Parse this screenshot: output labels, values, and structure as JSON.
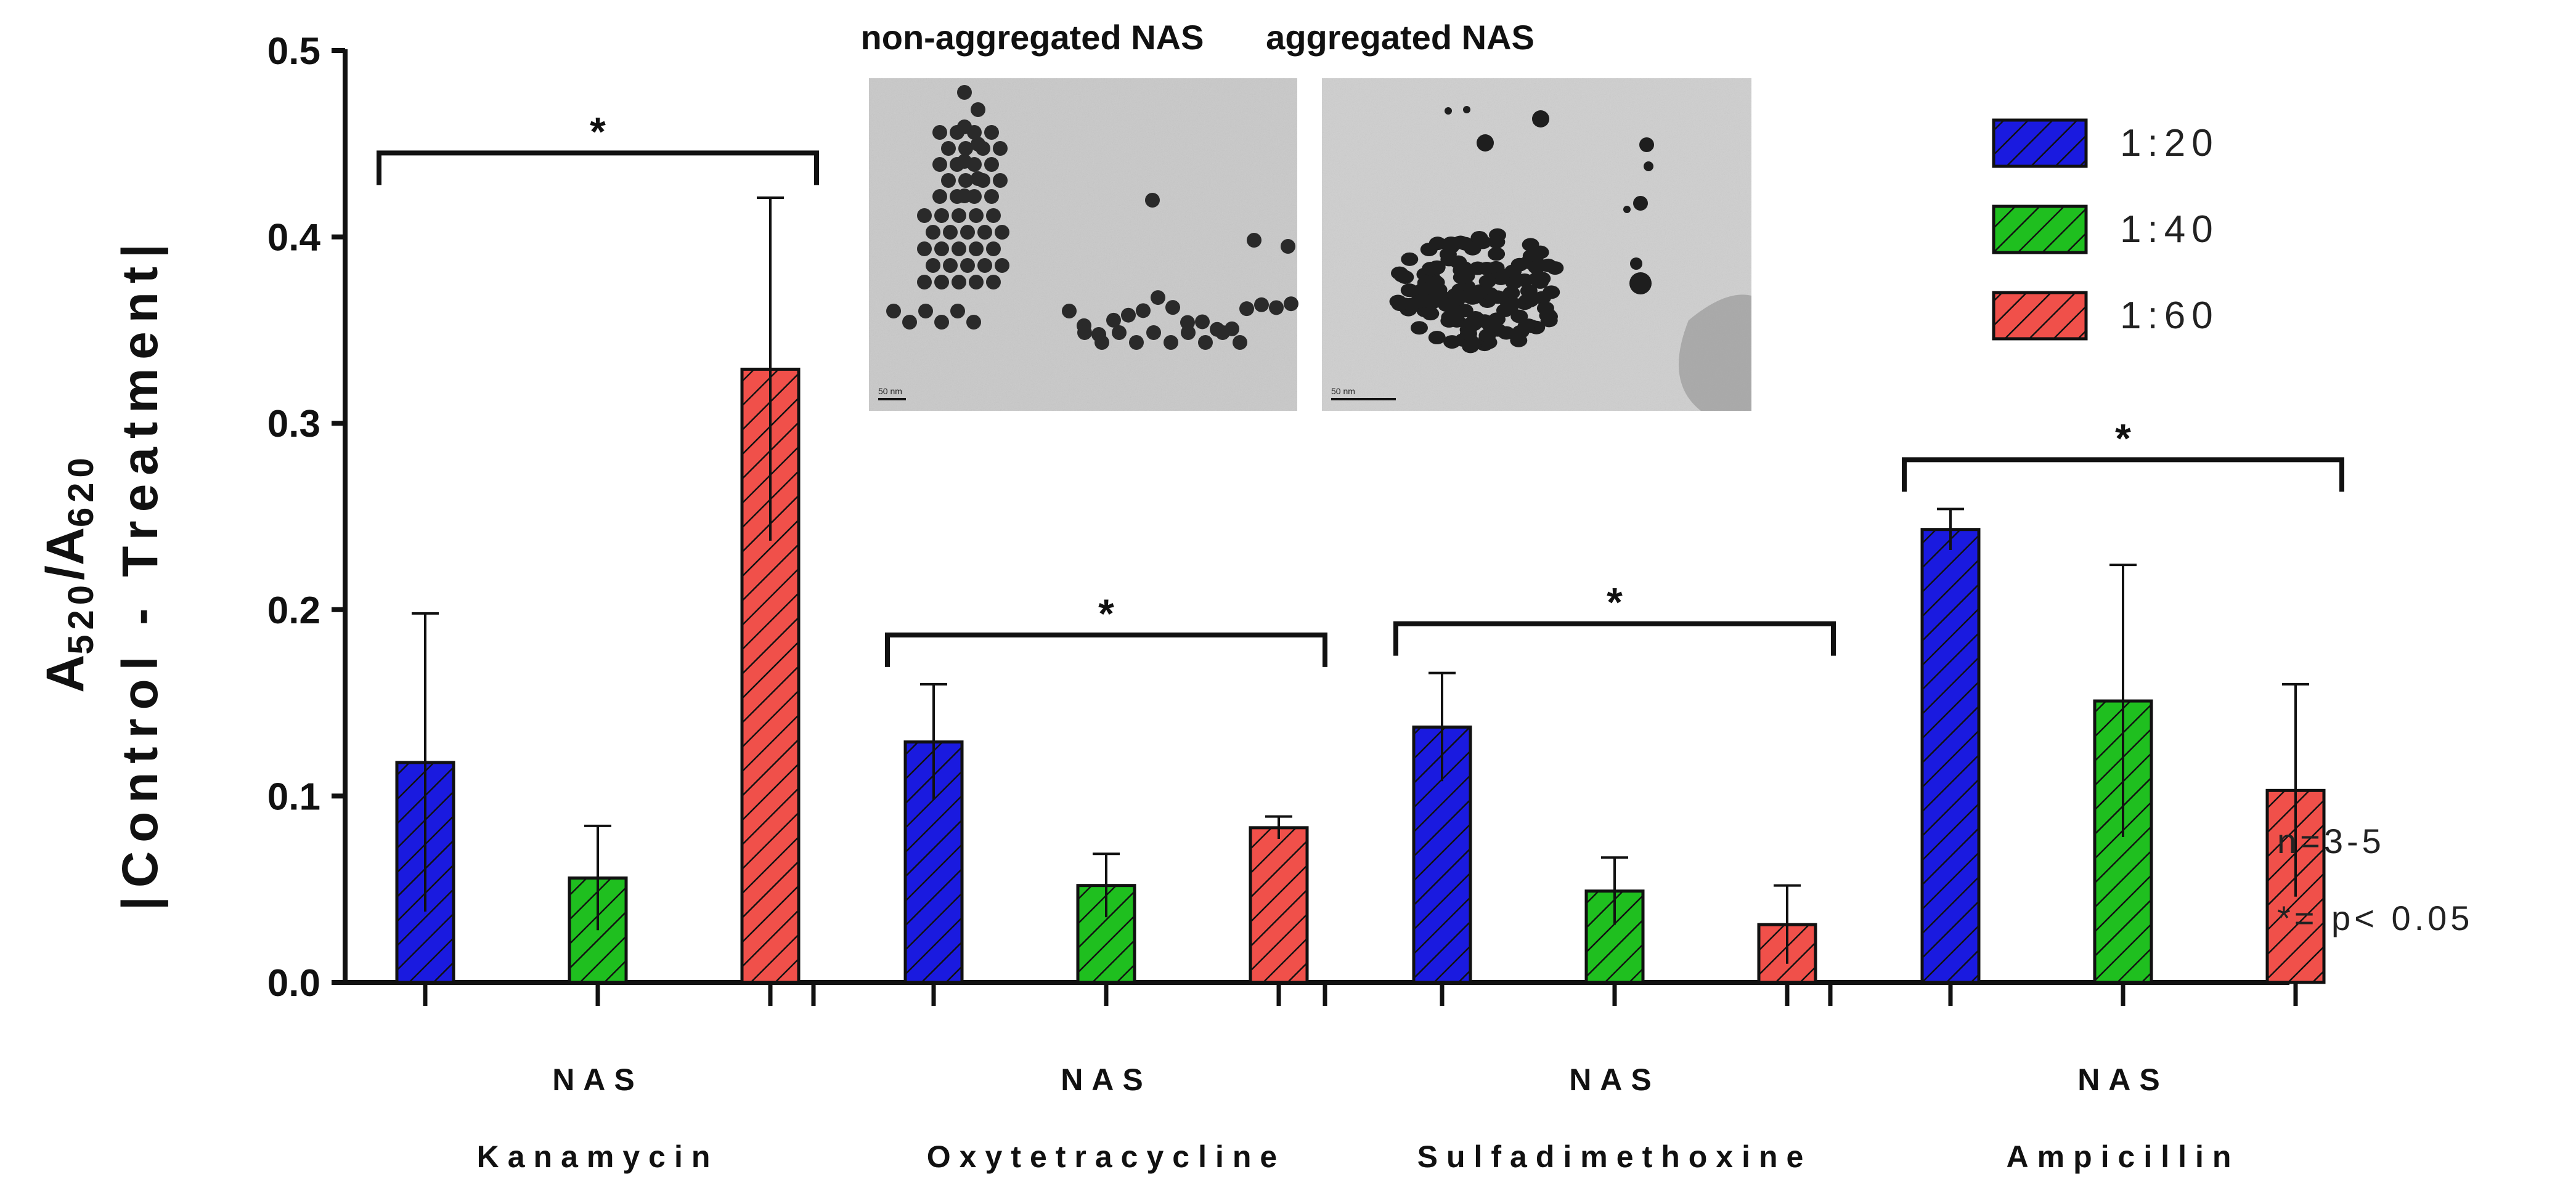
{
  "chart_data": {
    "type": "bar",
    "ylabel_line1": "A",
    "ylabel_sub1": "520",
    "ylabel_slash": "/A",
    "ylabel_sub2": "620",
    "ylabel_line2": "|Control - Treatment|",
    "ylim": [
      0,
      0.5
    ],
    "yticks": [
      "0.0",
      "0.1",
      "0.2",
      "0.3",
      "0.4",
      "0.5"
    ],
    "groups": [
      {
        "line1": "NAS",
        "line2": "Kanamycin"
      },
      {
        "line1": "NAS",
        "line2": "Oxytetracycline"
      },
      {
        "line1": "NAS",
        "line2": "Sulfadimethoxine"
      },
      {
        "line1": "NAS",
        "line2": "Ampicillin"
      }
    ],
    "series": [
      {
        "name": "1:20",
        "color": "#1a1adf",
        "values": [
          0.118,
          0.129,
          0.137,
          0.243
        ],
        "errors": [
          0.08,
          0.031,
          0.029,
          0.011
        ]
      },
      {
        "name": "1:40",
        "color": "#1fbf1f",
        "values": [
          0.056,
          0.052,
          0.049,
          0.151
        ],
        "errors": [
          0.028,
          0.017,
          0.018,
          0.073
        ]
      },
      {
        "name": "1:60",
        "color": "#f0504a",
        "values": [
          0.329,
          0.083,
          0.031,
          0.103
        ],
        "errors": [
          0.092,
          0.006,
          0.021,
          0.057
        ]
      }
    ],
    "significance": [
      {
        "group": 0,
        "label": "*"
      },
      {
        "group": 1,
        "label": "*"
      },
      {
        "group": 2,
        "label": "*"
      },
      {
        "group": 3,
        "label": "*"
      }
    ],
    "legend_position": "top-right",
    "notes": [
      "n=3-5",
      "*= p< 0.05"
    ],
    "insets": [
      {
        "title": "non-aggregated NAS",
        "scale_label": "50 nm"
      },
      {
        "title": "aggregated NAS",
        "scale_label": "50 nm"
      }
    ]
  }
}
